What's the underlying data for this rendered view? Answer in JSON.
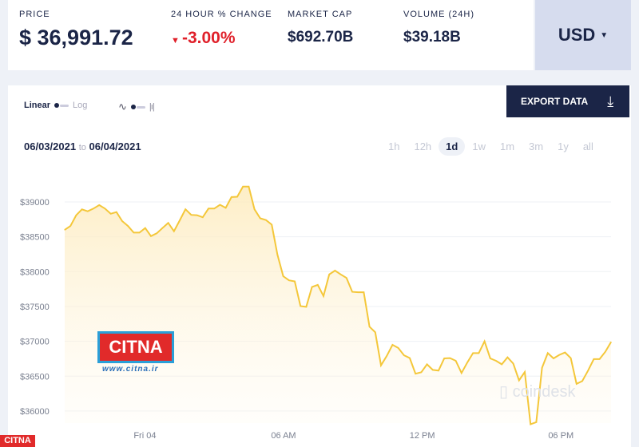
{
  "stats": {
    "price_label": "PRICE",
    "price": "$ 36,991.72",
    "change_label": "24 HOUR % CHANGE",
    "change": "-3.00%",
    "mcap_label": "MARKET CAP",
    "mcap": "$692.70B",
    "volume_label": "VOLUME (24H)",
    "volume": "$39.18B"
  },
  "currency": "USD",
  "controls": {
    "linear": "Linear",
    "log": "Log",
    "export": "EXPORT DATA"
  },
  "range": {
    "from": "06/03/2021",
    "to_word": "to",
    "to": "06/04/2021"
  },
  "periods": [
    "1h",
    "12h",
    "1d",
    "1w",
    "1m",
    "3m",
    "1y",
    "all"
  ],
  "active_period": "1d",
  "watermarks": {
    "citna": "CITNA",
    "citna_url": "www.citna.ir",
    "coindesk": "coindesk"
  },
  "colors": {
    "line": "#f4c73a",
    "down": "#e0202a",
    "navy": "#1b2547"
  },
  "chart_data": {
    "type": "area",
    "title": "",
    "ylim": [
      35800,
      39300
    ],
    "yticks": [
      39000,
      38500,
      38000,
      37500,
      37000,
      36500,
      36000
    ],
    "ytick_labels": [
      "$39000",
      "$38500",
      "$38000",
      "$37500",
      "$37000",
      "$36500",
      "$36000"
    ],
    "xlim_hours": [
      -3.47,
      20.17
    ],
    "xticks_hours": [
      0,
      6,
      12,
      18
    ],
    "xtick_labels": [
      "Fri 04",
      "06 AM",
      "12 PM",
      "06 PM"
    ],
    "values": [
      38600,
      38655,
      38810,
      38893,
      38866,
      38905,
      38955,
      38905,
      38830,
      38855,
      38725,
      38655,
      38560,
      38560,
      38625,
      38510,
      38550,
      38625,
      38700,
      38580,
      38735,
      38895,
      38815,
      38810,
      38780,
      38905,
      38905,
      38960,
      38915,
      39070,
      39075,
      39220,
      39220,
      38895,
      38765,
      38740,
      38675,
      38240,
      37935,
      37875,
      37860,
      37505,
      37495,
      37780,
      37810,
      37650,
      37960,
      38015,
      37960,
      37910,
      37710,
      37705,
      37705,
      37210,
      37130,
      36655,
      36790,
      36950,
      36905,
      36800,
      36760,
      36535,
      36555,
      36670,
      36590,
      36580,
      36755,
      36760,
      36720,
      36545,
      36695,
      36830,
      36830,
      37000,
      36755,
      36720,
      36670,
      36770,
      36680,
      36440,
      36560,
      35810,
      35840,
      36620,
      36830,
      36755,
      36805,
      36840,
      36760,
      36390,
      36430,
      36580,
      36745,
      36745,
      36850,
      36990
    ]
  }
}
